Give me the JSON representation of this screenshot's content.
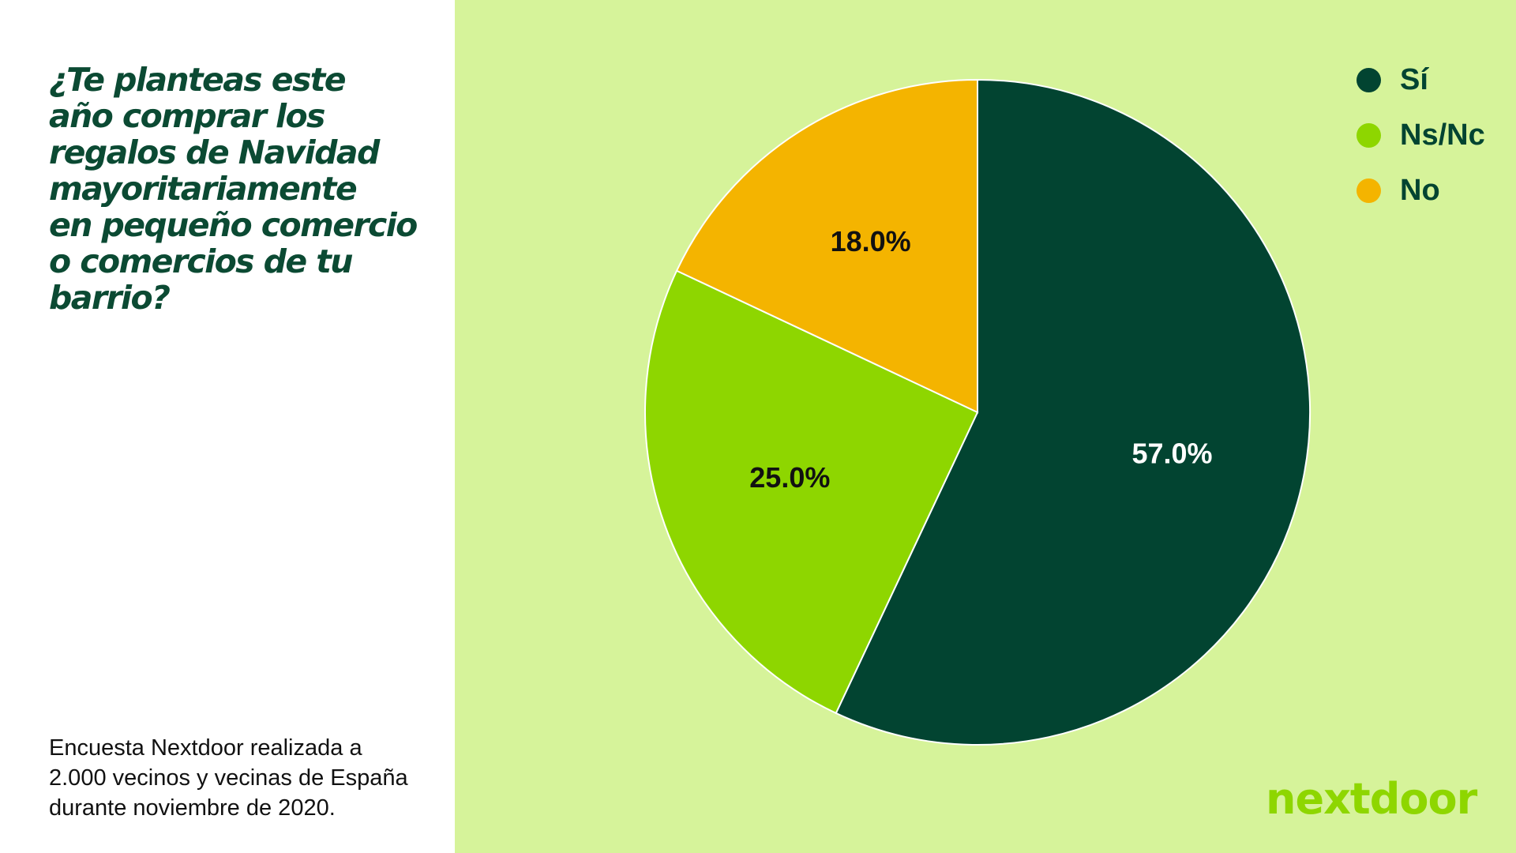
{
  "question": "¿Te planteas este\naño comprar los\nregalos de Navidad\nmayoritariamente\nen pequeño comercio\no comercios de tu\nbarrio?",
  "footnote": "Encuesta Nextdoor realizada a\n2.000 vecinos y vecinas de España\ndurante noviembre de 2020.",
  "logo": "nextdoor",
  "colors": {
    "background_right": "#d6f39a",
    "accent_dark_green": "#024431",
    "accent_light_green": "#8ed600",
    "accent_yellow": "#f4b400"
  },
  "chart_data": {
    "type": "pie",
    "title": "",
    "legend_position": "top-right",
    "slices": [
      {
        "label": "Sí",
        "value": 57.0,
        "display": "57.0%",
        "color": "#024431",
        "label_color": "#ffffff"
      },
      {
        "label": "Ns/Nc",
        "value": 25.0,
        "display": "25.0%",
        "color": "#8ed600",
        "label_color": "#111111"
      },
      {
        "label": "No",
        "value": 18.0,
        "display": "18.0%",
        "color": "#f4b400",
        "label_color": "#111111"
      }
    ]
  }
}
